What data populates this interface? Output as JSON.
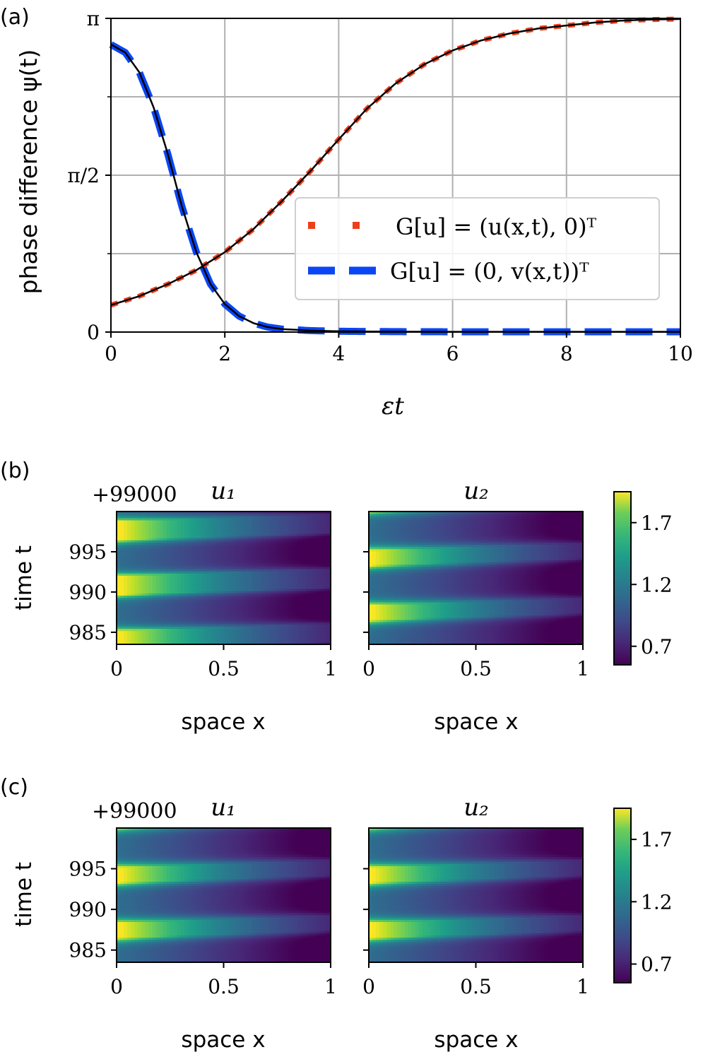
{
  "chart_data": [
    {
      "type": "line",
      "panel_label": "(a)",
      "xlabel": "εt",
      "ylabel": "phase difference ψ(t)",
      "xlim": [
        0,
        10
      ],
      "ylim": [
        0,
        3.14159
      ],
      "x_ticks": [
        "0",
        "2",
        "4",
        "6",
        "8",
        "10"
      ],
      "y_ticks": [
        "0",
        "π/2",
        "π"
      ],
      "grid": true,
      "legend_position": "center-right",
      "series": [
        {
          "name": "G[u] = (u(x,t), 0)ᵀ",
          "style": "dotted",
          "color": "#ee3e1c",
          "x": [
            0,
            0.5,
            1,
            1.5,
            2,
            2.5,
            3,
            3.5,
            4,
            4.5,
            5,
            5.5,
            6,
            6.5,
            7,
            7.5,
            8,
            8.5,
            9,
            9.5,
            10
          ],
          "y": [
            0.27,
            0.36,
            0.48,
            0.62,
            0.8,
            1.03,
            1.31,
            1.61,
            1.93,
            2.24,
            2.49,
            2.68,
            2.82,
            2.92,
            2.99,
            3.04,
            3.07,
            3.1,
            3.12,
            3.13,
            3.135
          ]
        },
        {
          "name": "G[u] = (0, v(x,t))ᵀ",
          "style": "dashed",
          "color": "#0a46f5",
          "x": [
            0,
            0.25,
            0.5,
            0.75,
            1,
            1.25,
            1.5,
            1.75,
            2,
            2.25,
            2.5,
            2.75,
            3,
            3.5,
            4,
            5,
            6,
            7,
            8,
            9,
            10
          ],
          "y": [
            2.88,
            2.8,
            2.6,
            2.25,
            1.78,
            1.25,
            0.8,
            0.48,
            0.28,
            0.16,
            0.09,
            0.05,
            0.03,
            0.015,
            0.008,
            0.004,
            0.003,
            0.003,
            0.003,
            0.003,
            0.003
          ]
        },
        {
          "name": "reference",
          "style": "solid",
          "color": "#000000",
          "legend": false,
          "curves": [
            {
              "x": [
                0,
                0.5,
                1,
                1.5,
                2,
                2.5,
                3,
                3.5,
                4,
                4.5,
                5,
                5.5,
                6,
                6.5,
                7,
                7.5,
                8,
                8.5,
                9,
                9.5,
                10
              ],
              "y": [
                0.27,
                0.36,
                0.48,
                0.62,
                0.8,
                1.03,
                1.31,
                1.61,
                1.93,
                2.24,
                2.49,
                2.68,
                2.82,
                2.92,
                2.99,
                3.04,
                3.07,
                3.1,
                3.12,
                3.13,
                3.135
              ]
            },
            {
              "x": [
                0,
                0.25,
                0.5,
                0.75,
                1,
                1.25,
                1.5,
                1.75,
                2,
                2.25,
                2.5,
                2.75,
                3,
                3.5,
                4,
                5,
                6,
                7,
                8,
                9,
                10
              ],
              "y": [
                2.88,
                2.8,
                2.6,
                2.25,
                1.78,
                1.25,
                0.8,
                0.48,
                0.28,
                0.16,
                0.09,
                0.05,
                0.03,
                0.015,
                0.008,
                0.004,
                0.003,
                0.003,
                0.003,
                0.003,
                0.003
              ]
            }
          ]
        }
      ]
    },
    {
      "type": "heatmap",
      "panel_label": "(b)",
      "offset_label": "+99000",
      "ylabel": "time t",
      "y_ticks": [
        "985",
        "990",
        "995"
      ],
      "ylim": [
        983.5,
        1000
      ],
      "x_ticks": [
        "0",
        "0.5",
        "1"
      ],
      "xlim": [
        0,
        1
      ],
      "colormap": "viridis",
      "colorbar_ticks": [
        "0.7",
        "1.2",
        "1.7"
      ],
      "colorbar_range": [
        0.55,
        1.95
      ],
      "period": 6.8,
      "subplots": [
        {
          "title": "u₁",
          "xlabel": "space x",
          "peak_times": [
            984.0,
            990.8,
            997.6
          ]
        },
        {
          "title": "u₂",
          "xlabel": "space x",
          "peak_times": [
            987.4,
            994.2
          ]
        }
      ]
    },
    {
      "type": "heatmap",
      "panel_label": "(c)",
      "offset_label": "+99000",
      "ylabel": "time t",
      "y_ticks": [
        "985",
        "990",
        "995"
      ],
      "ylim": [
        983.5,
        1000
      ],
      "x_ticks": [
        "0",
        "0.5",
        "1"
      ],
      "xlim": [
        0,
        1
      ],
      "colormap": "viridis",
      "colorbar_ticks": [
        "0.7",
        "1.2",
        "1.7"
      ],
      "colorbar_range": [
        0.55,
        1.95
      ],
      "period": 6.8,
      "subplots": [
        {
          "title": "u₁",
          "xlabel": "space x",
          "peak_times": [
            987.4,
            994.2
          ]
        },
        {
          "title": "u₂",
          "xlabel": "space x",
          "peak_times": [
            987.4,
            994.2
          ]
        }
      ]
    }
  ],
  "legend_entries": {
    "red_math": "G[u] = (u(x,t), 0)ᵀ",
    "blue_math": "G[u] = (0, v(x,t))ᵀ"
  }
}
